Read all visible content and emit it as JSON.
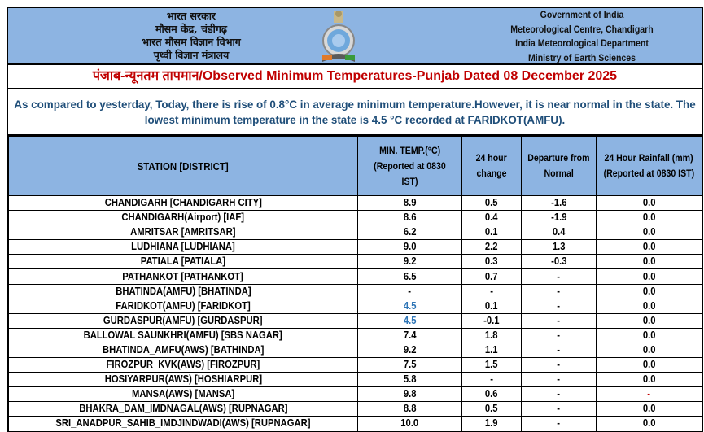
{
  "header": {
    "hindi_lines": [
      "भारत सरकार",
      "मौसम केंद्र, चंडीगढ़",
      "भारत मौसम विज्ञान विभाग",
      "पृथ्वी विज्ञान मंत्रालय"
    ],
    "english_lines": [
      "Government of India",
      "Meteorological Centre, Chandigarh",
      "India Meteorological Department",
      "Ministry of Earth Sciences"
    ],
    "emblem": "imd-emblem",
    "band_color": "#8db4e2"
  },
  "title": "पंजाब-न्यूनतम तापमान/Observed Minimum Temperatures-Punjab Dated 08 December 2025",
  "summary": "As compared to yesterday, Today, there is rise of 0.8°C in average minimum temperature.However, it is near normal in the state. The lowest minimum temperature in the state is 4.5 °C recorded at FARIDKOT(AMFU).",
  "table": {
    "headers": {
      "station": "STATION  [DISTRICT]",
      "min_temp": [
        "MIN. TEMP.(°C)",
        "(Reported at 0830 IST)"
      ],
      "change": [
        "24 hour",
        "change"
      ],
      "departure": [
        "Departure from",
        "Normal"
      ],
      "rainfall": [
        "24 Hour Rainfall (mm)",
        "(Reported at 0830 IST)"
      ]
    },
    "rows": [
      {
        "station": "CHANDIGARH  [CHANDIGARH CITY]",
        "min": "8.9",
        "change": "0.5",
        "dep": "-1.6",
        "rain": "0.0"
      },
      {
        "station": "CHANDIGARH(Airport)  [IAF]",
        "min": "8.6",
        "change": "0.4",
        "dep": "-1.9",
        "rain": "0.0"
      },
      {
        "station": "AMRITSAR  [AMRITSAR]",
        "min": "6.2",
        "change": "0.1",
        "dep": "0.4",
        "rain": "0.0"
      },
      {
        "station": "LUDHIANA  [LUDHIANA]",
        "min": "9.0",
        "change": "2.2",
        "dep": "1.3",
        "rain": "0.0"
      },
      {
        "station": "PATIALA  [PATIALA]",
        "min": "9.2",
        "change": "0.3",
        "dep": "-0.3",
        "rain": "0.0"
      },
      {
        "station": "PATHANKOT  [PATHANKOT]",
        "min": "6.5",
        "change": "0.7",
        "dep": "-",
        "rain": "0.0"
      },
      {
        "station": "BHATINDA(AMFU)  [BHATINDA]",
        "min": "-",
        "change": "-",
        "dep": "-",
        "rain": "0.0"
      },
      {
        "station": "FARIDKOT(AMFU)  [FARIDKOT]",
        "min": "4.5",
        "change": "0.1",
        "dep": "-",
        "rain": "0.0",
        "lowest": true
      },
      {
        "station": "GURDASPUR(AMFU)  [GURDASPUR]",
        "min": "4.5",
        "change": "-0.1",
        "dep": "-",
        "rain": "0.0",
        "lowest": true
      },
      {
        "station": "BALLOWAL SAUNKHRI(AMFU)  [SBS NAGAR]",
        "min": "7.4",
        "change": "1.8",
        "dep": "-",
        "rain": "0.0"
      },
      {
        "station": "BHATINDA_AMFU(AWS)  [BATHINDA]",
        "min": "9.2",
        "change": "1.1",
        "dep": "-",
        "rain": "0.0"
      },
      {
        "station": "FIROZPUR_KVK(AWS)  [FIROZPUR]",
        "min": "7.5",
        "change": "1.5",
        "dep": "-",
        "rain": "0.0"
      },
      {
        "station": "HOSIYARPUR(AWS)  [HOSHIARPUR]",
        "min": "5.8",
        "change": "-",
        "dep": "-",
        "rain": "0.0"
      },
      {
        "station": "MANSA(AWS)  [MANSA]",
        "min": "9.8",
        "change": "0.6",
        "dep": "-",
        "rain": "-",
        "rain_red": true
      },
      {
        "station": "BHAKRA_DAM_IMDNAGAL(AWS)  [RUPNAGAR]",
        "min": "8.8",
        "change": "0.5",
        "dep": "-",
        "rain": "0.0"
      },
      {
        "station": "SRI_ANADPUR_SAHIB_IMDJINDWADI(AWS)  [RUPNAGAR]",
        "min": "10.0",
        "change": "1.9",
        "dep": "-",
        "rain": "0.0"
      }
    ]
  },
  "colors": {
    "title": "#c00000",
    "summary": "#1f4e79",
    "lowest_value": "#2e75b6",
    "header_bg": "#8db4e2"
  }
}
